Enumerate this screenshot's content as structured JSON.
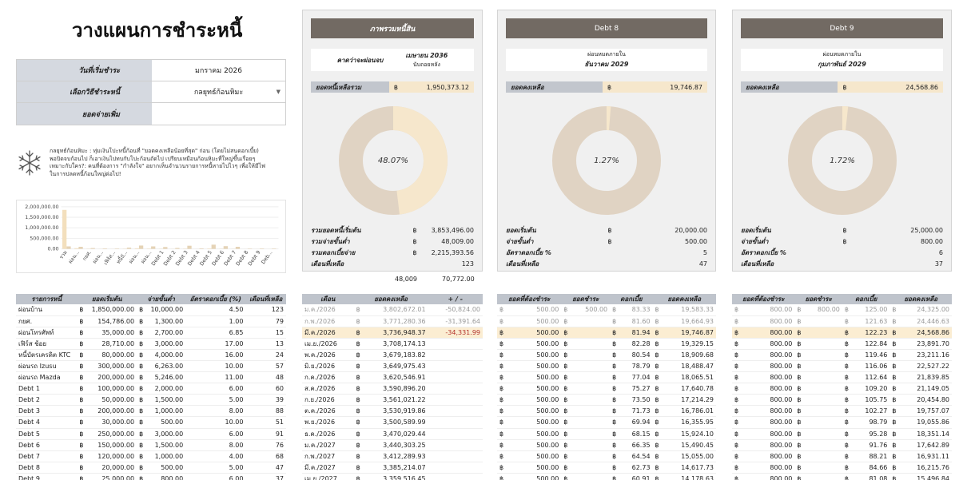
{
  "title": "วางแผนการชำระหนี้",
  "form": [
    {
      "label": "วันที่เริ่มชำระ",
      "value": "มกราคม 2026"
    },
    {
      "label": "เลือกวิธีชำระหนี้",
      "value": "กลยุทธ์ก้อนหิมะ",
      "dropdown": true
    },
    {
      "label": "ยอดจ่ายเพิ่ม",
      "value": ""
    }
  ],
  "strategy_note": "กลยุทธ์ก้อนหิมะ : ทุ่มเงินโปะหนี้ก้อนที่ \"ยอดคงเหลือน้อยที่สุด\" ก่อน (โดยไม่สนดอกเบี้ย) พอปิดจบก้อนไป ก็เอาเงินไปทบกับโปะก้อนถัดไป เปรียบเหมือนก้อนหิมะที่ใหญ่ขึ้นเรื่อยๆ เหมาะกับใคร?: คนที่ต้องการ \"กำลังใจ\" อยากเห็นจำนวนรายการหนี้หายไปไวๆ เพื่อให้มีไฟในการปลดหนี้ก้อนใหญ่ต่อไป!",
  "mini_chart": {
    "type": "bar",
    "yticks": [
      "2,000,000.00",
      "1,500,000.00",
      "1,000,000.00",
      "500,000.00",
      "0.00"
    ],
    "categories": [
      "รวม",
      "ผ่อน...",
      "กยศ.",
      "ผ่อน...",
      "เฟิร์ส...",
      "หนี้บั...",
      "ผ่อน...",
      "ผ่อน...",
      "Debt 1",
      "Debt 2",
      "Debt 3",
      "Debt 4",
      "Debt 5",
      "Debt 6",
      "Debt 7",
      "Debt 8",
      "Debt 9",
      "Deb..."
    ],
    "series": [
      {
        "values": [
          1850000,
          35000,
          12000,
          4000,
          3000,
          12000,
          30000,
          18000,
          10000,
          5000,
          15000,
          3000,
          20000,
          12000,
          8000,
          2000,
          2000,
          1000
        ]
      },
      {
        "values": [
          120000,
          100000,
          40000,
          25000,
          20000,
          60000,
          160000,
          120000,
          90000,
          45000,
          150000,
          28000,
          200000,
          130000,
          100000,
          18000,
          22000,
          20000
        ]
      }
    ],
    "colors": [
      "#f3dfbd",
      "#e5d3b6"
    ]
  },
  "panels": [
    {
      "title": "ภาพรวมหนี้สิน",
      "date_line1_label": "คาดว่าจะผ่อนจบ",
      "date_line1": "เมษายน 2036",
      "date_line2": "นับถอยหลัง",
      "balance_label": "ยอดหนี้เหลือรวม",
      "currency": "฿",
      "balance": "1,950,373.12",
      "percent": "48.07%",
      "pct_value": 48.07,
      "stats": [
        {
          "k": "รวมยอดหนี้เริ่มต้น",
          "c": "฿",
          "v": "3,853,496.00"
        },
        {
          "k": "รวมจ่ายขั้นต่ำ",
          "c": "฿",
          "v": "48,009.00"
        },
        {
          "k": "รวมดอกเบี้ยจ่าย",
          "c": "฿",
          "v": "2,215,393.56"
        },
        {
          "k": "เดือนที่เหลือ",
          "c": "",
          "v": "123"
        }
      ],
      "under_left": "48,009",
      "under_right": "70,772.00"
    },
    {
      "title": "Debt 8",
      "date_line1": "ผ่อนหมดภายใน",
      "date_line2": "ธันวาคม 2029",
      "balance_label": "ยอดคงเหลือ",
      "currency": "฿",
      "balance": "19,746.87",
      "percent": "1.27%",
      "pct_value": 1.27,
      "stats": [
        {
          "k": "ยอดเริ่มต้น",
          "c": "฿",
          "v": "20,000.00"
        },
        {
          "k": "จ่ายขั้นต่ำ",
          "c": "฿",
          "v": "500.00"
        },
        {
          "k": "อัตราดอกเบี้ย %",
          "c": "",
          "v": "5"
        },
        {
          "k": "เดือนที่เหลือ",
          "c": "",
          "v": "47"
        }
      ]
    },
    {
      "title": "Debt 9",
      "date_line1": "ผ่อนหมดภายใน",
      "date_line2": "กุมภาพันธ์ 2029",
      "balance_label": "ยอดคงเหลือ",
      "currency": "฿",
      "balance": "24,568.86",
      "percent": "1.72%",
      "pct_value": 1.72,
      "stats": [
        {
          "k": "ยอดเริ่มต้น",
          "c": "฿",
          "v": "25,000.00"
        },
        {
          "k": "จ่ายขั้นต่ำ",
          "c": "฿",
          "v": "800.00"
        },
        {
          "k": "อัตราดอกเบี้ย %",
          "c": "",
          "v": "6"
        },
        {
          "k": "เดือนที่เหลือ",
          "c": "",
          "v": "37"
        }
      ]
    }
  ],
  "colors": {
    "header_bar": "#726a63",
    "donut_remaining": "#f6e7cc",
    "donut_paid": "#e0d3c3",
    "highlight": "#fbedd2",
    "negative": "#b3322b"
  },
  "debt_table": {
    "headers": [
      "รายการหนี้",
      "ยอดเริ่มต้น",
      "จ่ายขั้นต่ำ",
      "อัตราดอกเบี้ย (%)",
      "เดือนที่เหลือ"
    ],
    "currency": "฿",
    "rows": [
      [
        "ผ่อนบ้าน",
        "1,850,000.00",
        "10,000.00",
        "4.50",
        "123"
      ],
      [
        "กยศ.",
        "154,786.00",
        "1,300.00",
        "1.00",
        "79"
      ],
      [
        "ผ่อนโทรศัพท์",
        "35,000.00",
        "2,700.00",
        "6.85",
        "15"
      ],
      [
        "เฟิร์ส ช้อย",
        "28,710.00",
        "3,000.00",
        "17.00",
        "13"
      ],
      [
        "หนี้บัตรเครดิต KTC",
        "80,000.00",
        "4,000.00",
        "16.00",
        "24"
      ],
      [
        "ผ่อนรถ Izusu",
        "300,000.00",
        "6,263.00",
        "10.00",
        "57"
      ],
      [
        "ผ่อนรถ Mazda",
        "200,000.00",
        "5,246.00",
        "11.00",
        "48"
      ],
      [
        "Debt 1",
        "100,000.00",
        "2,000.00",
        "6.00",
        "60"
      ],
      [
        "Debt 2",
        "50,000.00",
        "1,500.00",
        "5.00",
        "39"
      ],
      [
        "Debt 3",
        "200,000.00",
        "1,000.00",
        "8.00",
        "88"
      ],
      [
        "Debt 4",
        "30,000.00",
        "500.00",
        "10.00",
        "51"
      ],
      [
        "Debt 5",
        "250,000.00",
        "3,000.00",
        "6.00",
        "91"
      ],
      [
        "Debt 6",
        "150,000.00",
        "1,500.00",
        "8.00",
        "76"
      ],
      [
        "Debt 7",
        "120,000.00",
        "1,000.00",
        "4.00",
        "68"
      ],
      [
        "Debt 8",
        "20,000.00",
        "500.00",
        "5.00",
        "47"
      ],
      [
        "Debt 9",
        "25,000.00",
        "800.00",
        "6.00",
        "37"
      ]
    ]
  },
  "overview_table": {
    "headers": [
      "เดือน",
      "ยอดคงเหลือ",
      "+ / -"
    ],
    "currency": "฿",
    "rows": [
      [
        "ม.ค./2026",
        "3,802,672.01",
        "-50,824.00"
      ],
      [
        "ก.พ./2026",
        "3,771,280.36",
        "-31,391.64"
      ],
      [
        "มี.ค./2026",
        "3,736,948.37",
        "-34,331.99"
      ],
      [
        "เม.ย./2026",
        "3,708,174.13",
        ""
      ],
      [
        "พ.ค./2026",
        "3,679,183.82",
        ""
      ],
      [
        "มิ.ย./2026",
        "3,649,975.43",
        ""
      ],
      [
        "ก.ค./2026",
        "3,620,546.91",
        ""
      ],
      [
        "ส.ค./2026",
        "3,590,896.20",
        ""
      ],
      [
        "ก.ย./2026",
        "3,561,021.22",
        ""
      ],
      [
        "ต.ค./2026",
        "3,530,919.86",
        ""
      ],
      [
        "พ.ย./2026",
        "3,500,589.99",
        ""
      ],
      [
        "ธ.ค./2026",
        "3,470,029.44",
        ""
      ],
      [
        "ม.ค./2027",
        "3,440,303.25",
        ""
      ],
      [
        "ก.พ./2027",
        "3,412,289.93",
        ""
      ],
      [
        "มี.ค./2027",
        "3,385,214.07",
        ""
      ],
      [
        "เม.ย./2027",
        "3,359,516.45",
        ""
      ]
    ]
  },
  "debt8_table": {
    "headers": [
      "ยอดที่ต้องชำระ",
      "ยอดชำระ",
      "ดอกเบี้ย",
      "ยอดคงเหลือ"
    ],
    "currency": "฿",
    "rows": [
      [
        "500.00",
        "500.00",
        "83.33",
        "19,583.33"
      ],
      [
        "500.00",
        "",
        "81.60",
        "19,664.93"
      ],
      [
        "500.00",
        "",
        "81.94",
        "19,746.87"
      ],
      [
        "500.00",
        "",
        "82.28",
        "19,329.15"
      ],
      [
        "500.00",
        "",
        "80.54",
        "18,909.68"
      ],
      [
        "500.00",
        "",
        "78.79",
        "18,488.47"
      ],
      [
        "500.00",
        "",
        "77.04",
        "18,065.51"
      ],
      [
        "500.00",
        "",
        "75.27",
        "17,640.78"
      ],
      [
        "500.00",
        "",
        "73.50",
        "17,214.29"
      ],
      [
        "500.00",
        "",
        "71.73",
        "16,786.01"
      ],
      [
        "500.00",
        "",
        "69.94",
        "16,355.95"
      ],
      [
        "500.00",
        "",
        "68.15",
        "15,924.10"
      ],
      [
        "500.00",
        "",
        "66.35",
        "15,490.45"
      ],
      [
        "500.00",
        "",
        "64.54",
        "15,055.00"
      ],
      [
        "500.00",
        "",
        "62.73",
        "14,617.73"
      ],
      [
        "500.00",
        "",
        "60.91",
        "14,178.63"
      ]
    ]
  },
  "debt9_table": {
    "headers": [
      "ยอดที่ต้องชำระ",
      "ยอดชำระ",
      "ดอกเบี้ย",
      "ยอดคงเหลือ"
    ],
    "currency": "฿",
    "rows": [
      [
        "800.00",
        "800.00",
        "125.00",
        "24,325.00"
      ],
      [
        "800.00",
        "",
        "121.63",
        "24,446.63"
      ],
      [
        "800.00",
        "",
        "122.23",
        "24,568.86"
      ],
      [
        "800.00",
        "",
        "122.84",
        "23,891.70"
      ],
      [
        "800.00",
        "",
        "119.46",
        "23,211.16"
      ],
      [
        "800.00",
        "",
        "116.06",
        "22,527.22"
      ],
      [
        "800.00",
        "",
        "112.64",
        "21,839.85"
      ],
      [
        "800.00",
        "",
        "109.20",
        "21,149.05"
      ],
      [
        "800.00",
        "",
        "105.75",
        "20,454.80"
      ],
      [
        "800.00",
        "",
        "102.27",
        "19,757.07"
      ],
      [
        "800.00",
        "",
        "98.79",
        "19,055.86"
      ],
      [
        "800.00",
        "",
        "95.28",
        "18,351.14"
      ],
      [
        "800.00",
        "",
        "91.76",
        "17,642.89"
      ],
      [
        "800.00",
        "",
        "88.21",
        "16,931.11"
      ],
      [
        "800.00",
        "",
        "84.66",
        "16,215.76"
      ],
      [
        "800.00",
        "",
        "81.08",
        "15,496.84"
      ]
    ]
  }
}
